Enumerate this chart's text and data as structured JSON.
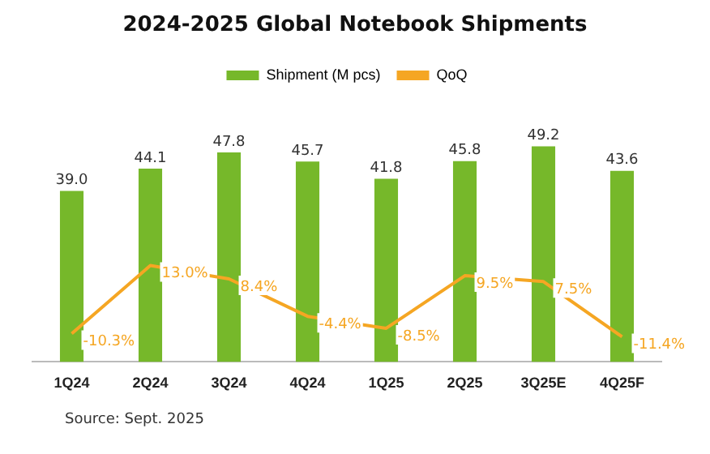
{
  "chart_data": {
    "type": "bar",
    "title": "2024-2025 Global Notebook Shipments",
    "categories": [
      "1Q24",
      "2Q24",
      "3Q24",
      "4Q24",
      "1Q25",
      "2Q25",
      "3Q25E",
      "4Q25F"
    ],
    "legend": "top",
    "grid": false,
    "series": [
      {
        "name": "Shipment (M pcs)",
        "color": "#76b82a",
        "values": [
          39.0,
          44.1,
          47.8,
          45.7,
          41.8,
          45.8,
          49.2,
          43.6
        ],
        "value_labels": [
          "39.0",
          "44.1",
          "47.8",
          "45.7",
          "41.8",
          "45.8",
          "49.2",
          "43.6"
        ]
      },
      {
        "name": "QoQ",
        "type": "line",
        "axis": "y2",
        "color": "#f5a623",
        "values": [
          -10.3,
          13.0,
          8.4,
          -4.4,
          -8.5,
          9.5,
          7.5,
          -11.4
        ],
        "value_labels": [
          "-10.3%",
          "13.0%",
          "8.4%",
          "-4.4%",
          "-8.5%",
          "9.5%",
          "7.5%",
          "-11.4%"
        ]
      }
    ],
    "annotations": [
      "Source: Sept. 2025"
    ]
  }
}
